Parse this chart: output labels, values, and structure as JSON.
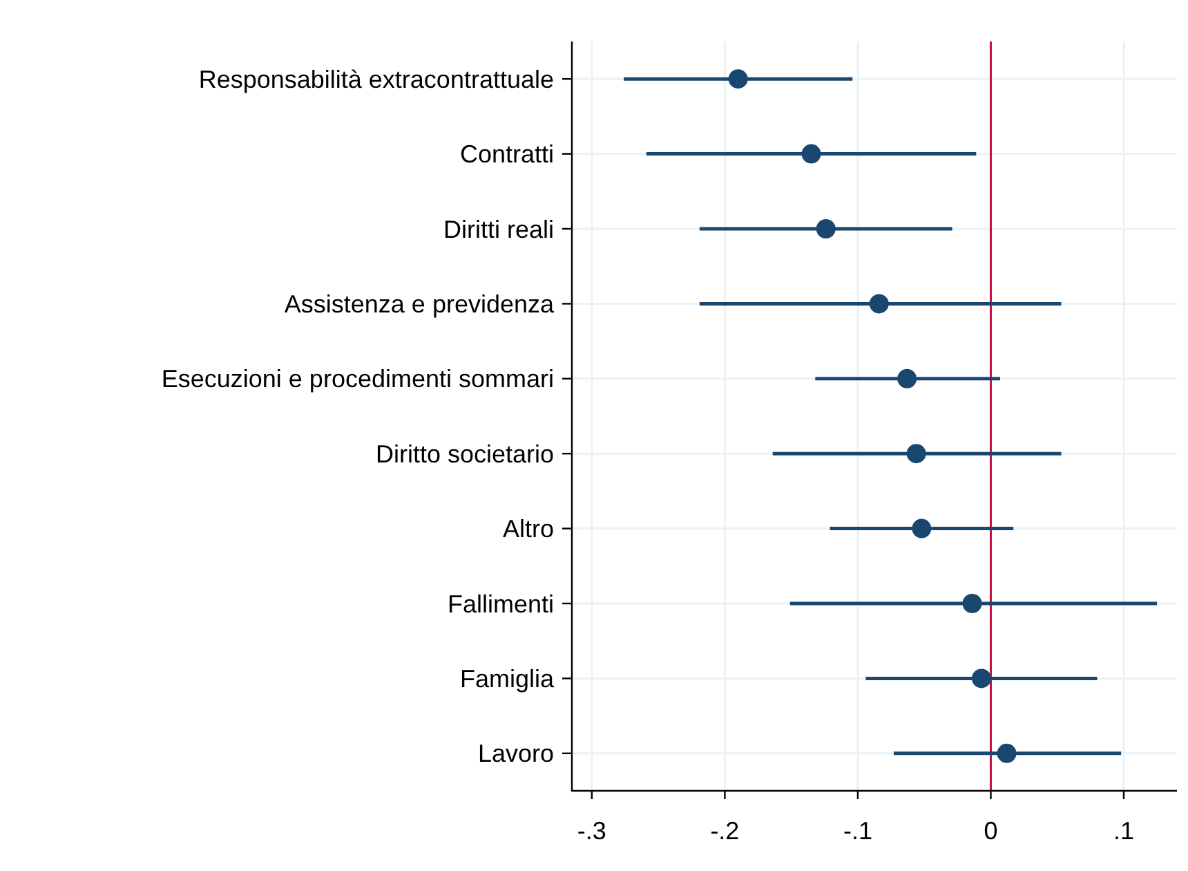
{
  "chart_data": {
    "type": "scatter",
    "orientation": "horizontal",
    "categories": [
      "Responsabilità extracontrattuale",
      "Contratti",
      "Diritti reali",
      "Assistenza e previdenza",
      "Esecuzioni e procedimenti sommari",
      "Diritto societario",
      "Altro",
      "Fallimenti",
      "Famiglia",
      "Lavoro"
    ],
    "values": [
      -0.19,
      -0.135,
      -0.124,
      -0.084,
      -0.063,
      -0.056,
      -0.052,
      -0.014,
      -0.007,
      0.012
    ],
    "errors": [
      [
        -0.276,
        -0.104
      ],
      [
        -0.259,
        -0.011
      ],
      [
        -0.219,
        -0.029
      ],
      [
        -0.219,
        0.053
      ],
      [
        -0.132,
        0.007
      ],
      [
        -0.164,
        0.053
      ],
      [
        -0.121,
        0.017
      ],
      [
        -0.151,
        0.125
      ],
      [
        -0.094,
        0.08
      ],
      [
        -0.073,
        0.098
      ]
    ],
    "color": "#1a476f",
    "marker": "circle",
    "xlim": [
      -0.315,
      0.14
    ],
    "xticks": [
      {
        "value": -0.3,
        "label": "-.3"
      },
      {
        "value": -0.2,
        "label": "-.2"
      },
      {
        "value": -0.1,
        "label": "-.1"
      },
      0,
      {
        "value": 0.1,
        "label": ".1"
      }
    ],
    "grid": true,
    "ref_lines": [
      {
        "axis": "x",
        "value": 0,
        "color": "#c8103e"
      }
    ]
  }
}
